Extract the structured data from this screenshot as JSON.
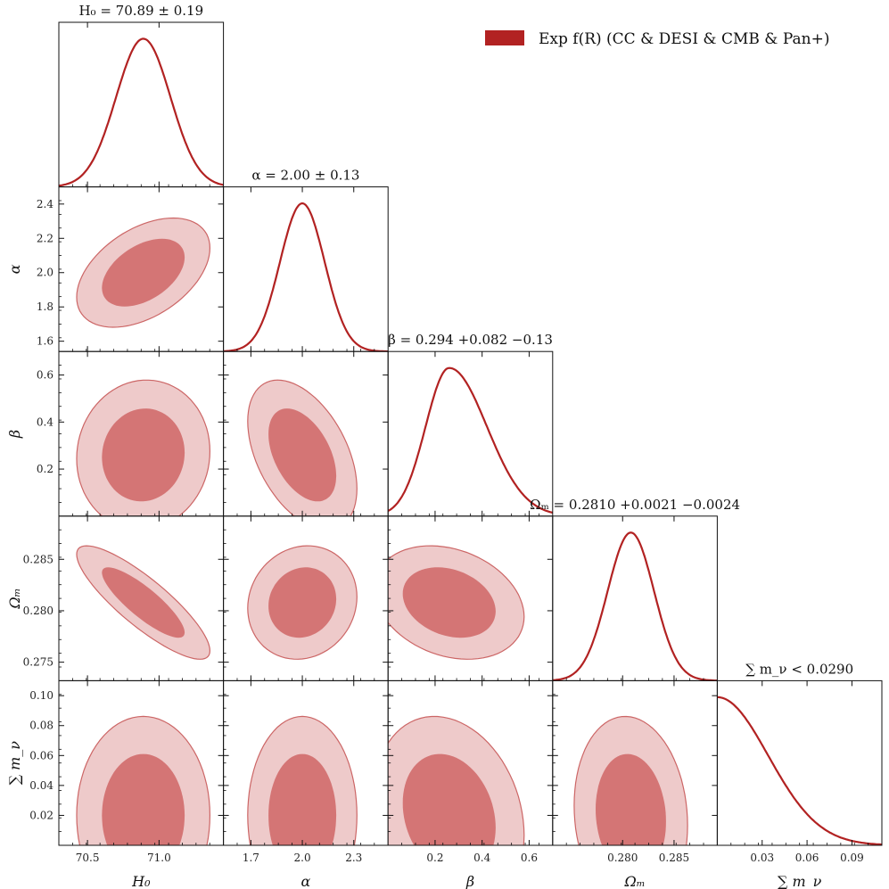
{
  "figure": {
    "legend_label": "Exp f(R) (CC & DESI & CMB & Pan+)",
    "legend_color": "#b22222",
    "line_color": "#b22222",
    "fill_inner": "#d47575",
    "fill_outer": "#eecaca",
    "edge_color": "#cc6666"
  },
  "chart_data": {
    "type": "corner",
    "params": [
      {
        "key": "H0",
        "label": "H₀",
        "title": "H₀ = 70.89 ± 0.19",
        "range": [
          70.3,
          71.45
        ],
        "ticks": [
          70.5,
          71.0
        ],
        "tick_labels": [
          "70.5",
          "71.0"
        ],
        "mean": 70.89,
        "sigma": 0.19
      },
      {
        "key": "alpha",
        "label": "α",
        "title": "α = 2.00 ± 0.13",
        "range": [
          1.54,
          2.5
        ],
        "ticks": [
          1.7,
          2.0,
          2.3
        ],
        "tick_labels": [
          "1.7",
          "2.0",
          "2.3"
        ],
        "ytick_labels": [
          "1.6",
          "1.8",
          "2.0",
          "2.2",
          "2.4"
        ],
        "yticks": [
          1.6,
          1.8,
          2.0,
          2.2,
          2.4
        ],
        "mean": 2.0,
        "sigma": 0.13
      },
      {
        "key": "beta",
        "label": "β",
        "title": "β = 0.294 +0.082 −0.13",
        "range": [
          0.0,
          0.7
        ],
        "ticks": [
          0.2,
          0.4,
          0.6
        ],
        "tick_labels": [
          "0.2",
          "0.4",
          "0.6"
        ],
        "ytick_labels": [
          "0.2",
          "0.4",
          "0.6"
        ],
        "yticks": [
          0.2,
          0.4,
          0.6
        ],
        "mode": 0.26,
        "sigma_lo": 0.1,
        "sigma_hi": 0.16
      },
      {
        "key": "Om",
        "label": "Ωₘ",
        "title": "Ωₘ = 0.2810 +0.0021 −0.0024",
        "range": [
          0.2732,
          0.2892
        ],
        "ticks": [
          0.28,
          0.285
        ],
        "tick_labels": [
          "0.280",
          "0.285"
        ],
        "ytick_labels": [
          "0.275",
          "0.280",
          "0.285"
        ],
        "yticks": [
          0.275,
          0.28,
          0.285
        ],
        "mean": 0.2808,
        "sigma": 0.00225
      },
      {
        "key": "mnu",
        "label": "∑ m_ν",
        "title": "∑ m_ν < 0.0290",
        "range": [
          0.0,
          0.11
        ],
        "ticks": [
          0.03,
          0.06,
          0.09
        ],
        "tick_labels": [
          "0.03",
          "0.06",
          "0.09"
        ],
        "ytick_labels": [
          "0.02",
          "0.04",
          "0.06",
          "0.08",
          "0.10"
        ],
        "yticks": [
          0.02,
          0.04,
          0.06,
          0.08,
          0.1
        ],
        "upper_limit": 0.029
      }
    ],
    "pairs": [
      {
        "x": "H0",
        "y": "alpha",
        "rho": 0.45
      },
      {
        "x": "H0",
        "y": "beta",
        "rho": 0.05
      },
      {
        "x": "alpha",
        "y": "beta",
        "rho": -0.45
      },
      {
        "x": "H0",
        "y": "Om",
        "rho": -0.85
      },
      {
        "x": "alpha",
        "y": "Om",
        "rho": 0.1
      },
      {
        "x": "beta",
        "y": "Om",
        "rho": -0.25
      },
      {
        "x": "H0",
        "y": "mnu",
        "rho": 0.0
      },
      {
        "x": "alpha",
        "y": "mnu",
        "rho": 0.0
      },
      {
        "x": "beta",
        "y": "mnu",
        "rho": -0.2
      },
      {
        "x": "Om",
        "y": "mnu",
        "rho": -0.1
      }
    ]
  }
}
